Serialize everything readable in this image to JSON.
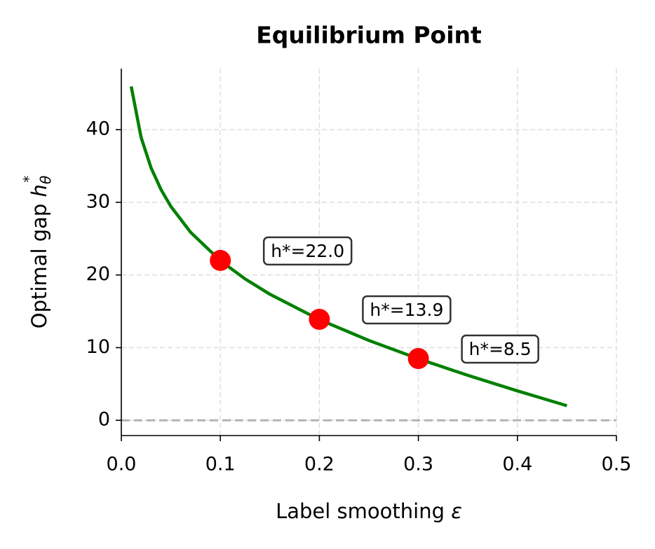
{
  "chart_data": {
    "type": "line",
    "title": "Equilibrium Point",
    "x_label": "Label smoothing",
    "x_symbol": "ε",
    "y_label": "Optimal gap",
    "y_symbol": "h",
    "y_symbol_sub": "θ",
    "y_symbol_sup": "*",
    "xlim": [
      0,
      0.5
    ],
    "xticks": [
      {
        "value": 0,
        "label": "0.0"
      },
      0.1,
      0.2,
      0.3,
      0.4,
      0.5
    ],
    "ylim": [
      -2.1,
      48.4
    ],
    "yticks": [
      0,
      10,
      20,
      30,
      40
    ],
    "grid": true,
    "reference_line": {
      "value": 0,
      "color": "#b3b3b3"
    },
    "series": [
      {
        "kind": "curve",
        "color": "#008000",
        "x": [
          0.01,
          0.02,
          0.03,
          0.04,
          0.05,
          0.07,
          0.1,
          0.125,
          0.15,
          0.2,
          0.25,
          0.3,
          0.35,
          0.4,
          0.45
        ],
        "values": [
          45.95,
          38.92,
          34.76,
          31.78,
          29.44,
          25.87,
          21.97,
          19.46,
          17.35,
          13.86,
          10.99,
          8.47,
          6.19,
          4.05,
          2.01
        ]
      },
      {
        "kind": "points",
        "color": "#ff0000",
        "x": [
          0.1,
          0.2,
          0.3
        ],
        "values": [
          22.0,
          13.9,
          8.5
        ],
        "value_labels": [
          "h*=22.0",
          "h*=13.9",
          "h*=8.5"
        ]
      }
    ]
  }
}
